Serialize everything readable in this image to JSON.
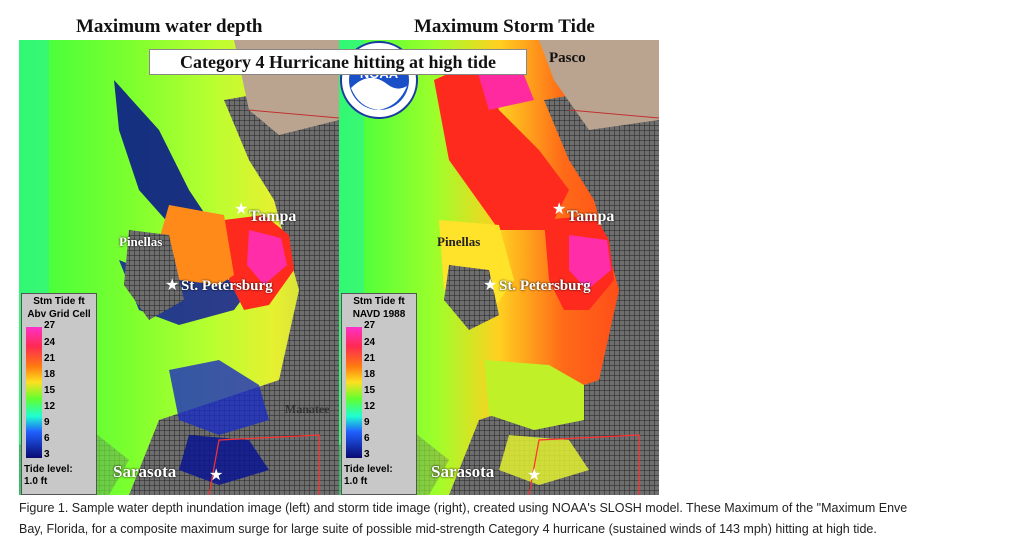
{
  "titles": {
    "left": "Maximum water depth",
    "right": "Maximum Storm Tide"
  },
  "banner": "Category 4 Hurricane hitting at high tide",
  "places": {
    "tampa": "Tampa",
    "pinellas": "Pinellas",
    "st_petersburg": "St. Petersburg",
    "sarasota": "Sarasota",
    "pasco": "Pasco",
    "manatee": "Manatee"
  },
  "legend_left": {
    "title1": "Stm Tide ft",
    "title2": "Abv Grid Cell",
    "ticks": [
      "27",
      "24",
      "21",
      "18",
      "15",
      "12",
      "9",
      "6",
      "3"
    ],
    "tide1": "Tide level:",
    "tide2": "1.0 ft"
  },
  "legend_right": {
    "title1": "Stm Tide ft",
    "title2": "NAVD 1988",
    "ticks": [
      "27",
      "24",
      "21",
      "18",
      "15",
      "12",
      "9",
      "6",
      "3"
    ],
    "tide1": "Tide level:",
    "tide2": "1.0 ft"
  },
  "logo": {
    "text": "NOAA",
    "icon": "noaa-logo"
  },
  "caption": {
    "line1": "Figure 1. Sample water depth inundation image (left) and storm tide image (right), created using NOAA's SLOSH model. These Maximum of the \"Maximum Enve",
    "line2": "Bay, Florida, for a composite maximum surge for large suite of possible mid-strength Category 4 hurricane (sustained winds of 143 mph) hitting at high tide."
  },
  "colors": {
    "surge_high": "#ff2aa0",
    "surge_mid": "#ff3a1a",
    "surge_low": "#1e2fd0",
    "land": "#bba48f",
    "sea": "#5a5a5a"
  }
}
